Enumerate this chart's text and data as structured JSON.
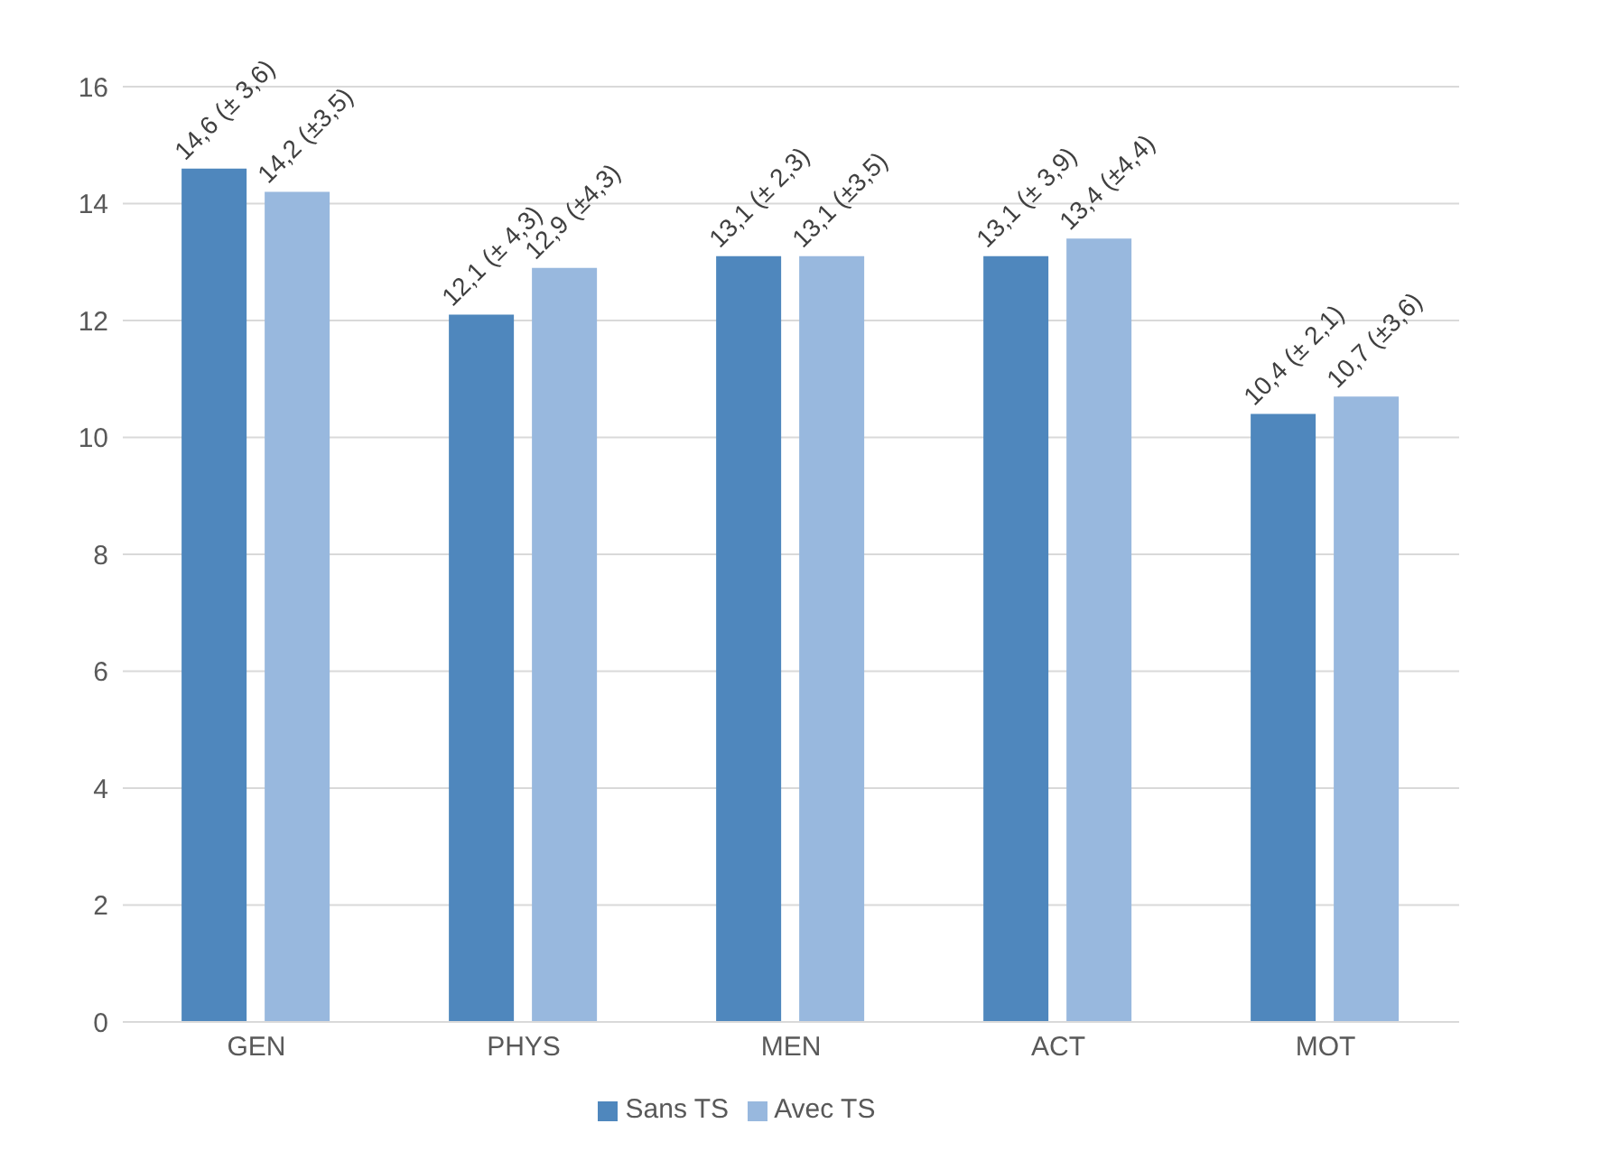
{
  "chart_data": {
    "type": "bar",
    "categories": [
      "GEN",
      "PHYS",
      "MEN",
      "ACT",
      "MOT"
    ],
    "series": [
      {
        "name": "Sans TS",
        "color": "#4f87bd",
        "values": [
          14.6,
          12.1,
          13.1,
          13.1,
          10.4
        ],
        "value_labels": [
          "14,6 (± 3,6)",
          "12,1 (± 4,3)",
          "13,1 (± 2,3)",
          "13,1 (± 3,9)",
          "10,4 (± 2,1)"
        ]
      },
      {
        "name": "Avec TS",
        "color": "#98b8de",
        "values": [
          14.2,
          12.9,
          13.1,
          13.4,
          10.7
        ],
        "value_labels": [
          "14,2 (±3,5)",
          "12,9 (±4,3)",
          "13,1 (±3,5)",
          "13,4 (±4,4)",
          "10,7 (±3,6)"
        ]
      }
    ],
    "ylim": [
      0,
      16
    ],
    "yticks": [
      0,
      2,
      4,
      6,
      8,
      10,
      12,
      14,
      16
    ],
    "grid": "y",
    "legend": "bottom"
  }
}
